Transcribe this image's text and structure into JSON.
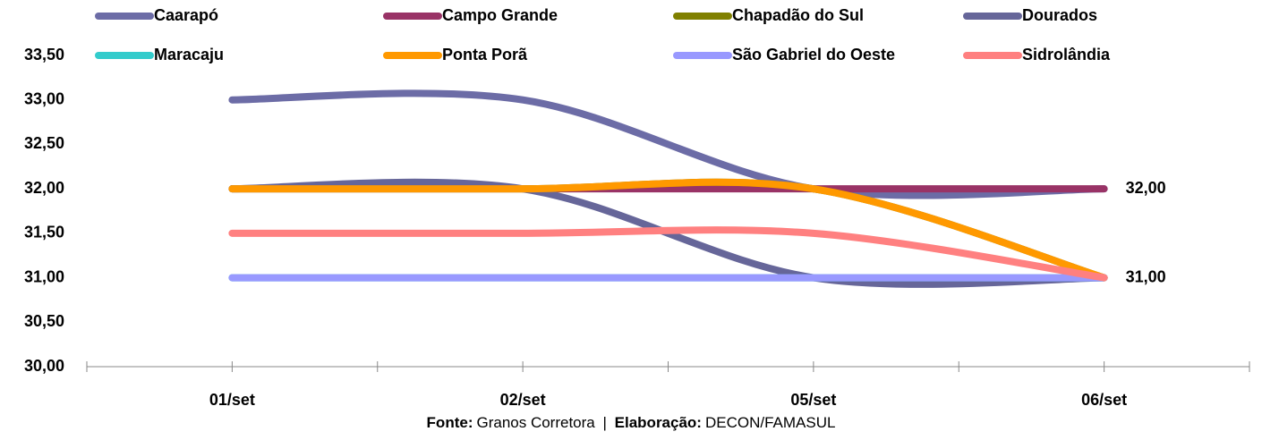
{
  "chart_data": {
    "type": "line",
    "smooth": true,
    "legend_position": "top",
    "categories": [
      "01/set",
      "02/set",
      "05/set",
      "06/set"
    ],
    "ylim": [
      30,
      33.5
    ],
    "yticks": [
      {
        "value": 30,
        "label": "30,00"
      },
      {
        "value": 30.5,
        "label": "30,50"
      },
      {
        "value": 31,
        "label": "31,00"
      },
      {
        "value": 31.5,
        "label": "31,50"
      },
      {
        "value": 32,
        "label": "32,00"
      },
      {
        "value": 32.5,
        "label": "32,50"
      },
      {
        "value": 33,
        "label": "33,00"
      },
      {
        "value": 33.5,
        "label": "33,50"
      }
    ],
    "series": [
      {
        "name": "Caarapó",
        "color": "#6c6ca6",
        "values": [
          33,
          33,
          32,
          32
        ]
      },
      {
        "name": "Campo Grande",
        "color": "#993366",
        "values": [
          32,
          32,
          32,
          32
        ],
        "value_labels": [
          null,
          null,
          null,
          "32,00"
        ]
      },
      {
        "name": "Chapadão do Sul",
        "color": "#808000",
        "values": [
          32,
          32,
          32,
          31
        ]
      },
      {
        "name": "Dourados",
        "color": "#666699",
        "values": [
          32,
          32,
          31,
          31
        ]
      },
      {
        "name": "Maracaju",
        "color": "#33cccc",
        "values": [
          31,
          31,
          31,
          31
        ]
      },
      {
        "name": "Ponta Porã",
        "color": "#ff9900",
        "values": [
          32,
          32,
          32,
          31
        ],
        "value_labels": [
          null,
          null,
          null,
          "31,00"
        ]
      },
      {
        "name": "São Gabriel do Oeste",
        "color": "#9999ff",
        "values": [
          31,
          31,
          31,
          31
        ]
      },
      {
        "name": "Sidrolândia",
        "color": "#ff8080",
        "values": [
          31.5,
          31.5,
          31.5,
          31
        ]
      }
    ]
  },
  "footer": {
    "source_label": "Fonte:",
    "source": "Granos Corretora",
    "separator": "|",
    "credit_label": "Elaboração:",
    "credit": "DECON/FAMASUL"
  }
}
